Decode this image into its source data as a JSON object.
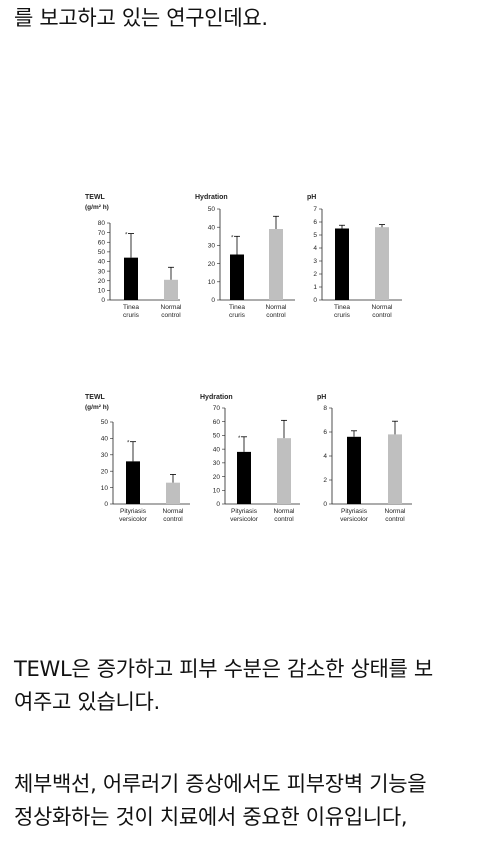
{
  "article": {
    "p1_line1": "를 보고하고 있는 연구인데요.",
    "p2_line1": "TEWL은 증가하고 피부 수분은 감소한 상태를 보",
    "p2_line2": "여주고 있습니다.",
    "p3_line1": "체부백선, 어루러기 증상에서도 피부장벽 기능을",
    "p3_line2": "정상화하는 것이 치료에서 중요한 이유입니다,"
  },
  "colors": {
    "patient_bar": "#000000",
    "control_bar": "#bfbfbf",
    "axis": "#222222"
  },
  "chart_data": [
    {
      "id": "c1",
      "type": "bar",
      "title": "TEWL",
      "ylabel": "(g/m² h)",
      "categories": [
        [
          "Tinea",
          "cruris"
        ],
        [
          "Normal",
          "control"
        ]
      ],
      "values": [
        44,
        21
      ],
      "errors": [
        25,
        13
      ],
      "sig": [
        true,
        false
      ],
      "ylim": [
        0,
        80
      ],
      "yticks": [
        0,
        10,
        20,
        30,
        40,
        50,
        60,
        70,
        80
      ]
    },
    {
      "id": "c2",
      "type": "bar",
      "title": "Hydration",
      "ylabel": "",
      "categories": [
        [
          "Tinea",
          "cruris"
        ],
        [
          "Normal",
          "control"
        ]
      ],
      "values": [
        25,
        39
      ],
      "errors": [
        10,
        7
      ],
      "sig": [
        true,
        false
      ],
      "ylim": [
        0,
        50
      ],
      "yticks": [
        0,
        10,
        20,
        30,
        40,
        50
      ]
    },
    {
      "id": "c3",
      "type": "bar",
      "title": "pH",
      "ylabel": "",
      "categories": [
        [
          "Tinea",
          "cruris"
        ],
        [
          "Normal",
          "control"
        ]
      ],
      "values": [
        5.5,
        5.6
      ],
      "errors": [
        0.25,
        0.2
      ],
      "sig": [
        false,
        false
      ],
      "ylim": [
        0,
        7
      ],
      "yticks": [
        0,
        1,
        2,
        3,
        4,
        5,
        6,
        7
      ]
    },
    {
      "id": "c4",
      "type": "bar",
      "title": "TEWL",
      "ylabel": "(g/m² h)",
      "categories": [
        [
          "Pityriasis",
          "versicolor"
        ],
        [
          "Normal",
          "control"
        ]
      ],
      "values": [
        26,
        13
      ],
      "errors": [
        12,
        5
      ],
      "sig": [
        true,
        false
      ],
      "ylim": [
        0,
        50
      ],
      "yticks": [
        0,
        10,
        20,
        30,
        40,
        50
      ]
    },
    {
      "id": "c5",
      "type": "bar",
      "title": "Hydration",
      "ylabel": "",
      "categories": [
        [
          "Pityriasis",
          "versicolor"
        ],
        [
          "Normal",
          "control"
        ]
      ],
      "values": [
        38,
        48
      ],
      "errors": [
        11,
        13
      ],
      "sig": [
        true,
        false
      ],
      "ylim": [
        0,
        70
      ],
      "yticks": [
        0,
        10,
        20,
        30,
        40,
        50,
        60,
        70
      ]
    },
    {
      "id": "c6",
      "type": "bar",
      "title": "pH",
      "ylabel": "",
      "categories": [
        [
          "Pityriasis",
          "versicolor"
        ],
        [
          "Normal",
          "control"
        ]
      ],
      "values": [
        5.6,
        5.8
      ],
      "errors": [
        0.5,
        1.1
      ],
      "sig": [
        false,
        false
      ],
      "ylim": [
        0,
        8
      ],
      "yticks": [
        0,
        2,
        4,
        6,
        8
      ]
    }
  ]
}
